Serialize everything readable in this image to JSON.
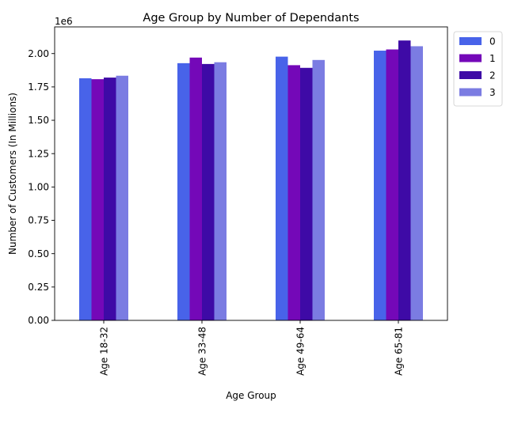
{
  "chart_data": {
    "type": "bar",
    "title": "Age Group by Number of Dependants",
    "xlabel": "Age Group",
    "ylabel": "Number of Customers (In Millions)",
    "offset_text": "1e6",
    "categories": [
      "Age 18-32",
      "Age 33-48",
      "Age 49-64",
      "Age 65-81"
    ],
    "series": [
      {
        "name": "0",
        "color": "#4863e9",
        "values": [
          1815000,
          1928000,
          1977000,
          2022000
        ]
      },
      {
        "name": "1",
        "color": "#7408b8",
        "values": [
          1808000,
          1970000,
          1913000,
          2031000
        ]
      },
      {
        "name": "2",
        "color": "#3e0aa6",
        "values": [
          1820000,
          1922000,
          1893000,
          2098000
        ]
      },
      {
        "name": "3",
        "color": "#7b7ce2",
        "values": [
          1834000,
          1935000,
          1952000,
          2055000
        ]
      }
    ],
    "ylim": [
      0,
      2200000
    ],
    "yticks": [
      0,
      250000,
      500000,
      750000,
      1000000,
      1250000,
      1500000,
      1750000,
      2000000
    ],
    "ytick_labels": [
      "0.00",
      "0.25",
      "0.50",
      "0.75",
      "1.00",
      "1.25",
      "1.50",
      "1.75",
      "2.00"
    ],
    "grid": false,
    "legend_position": "outside-top-right"
  }
}
